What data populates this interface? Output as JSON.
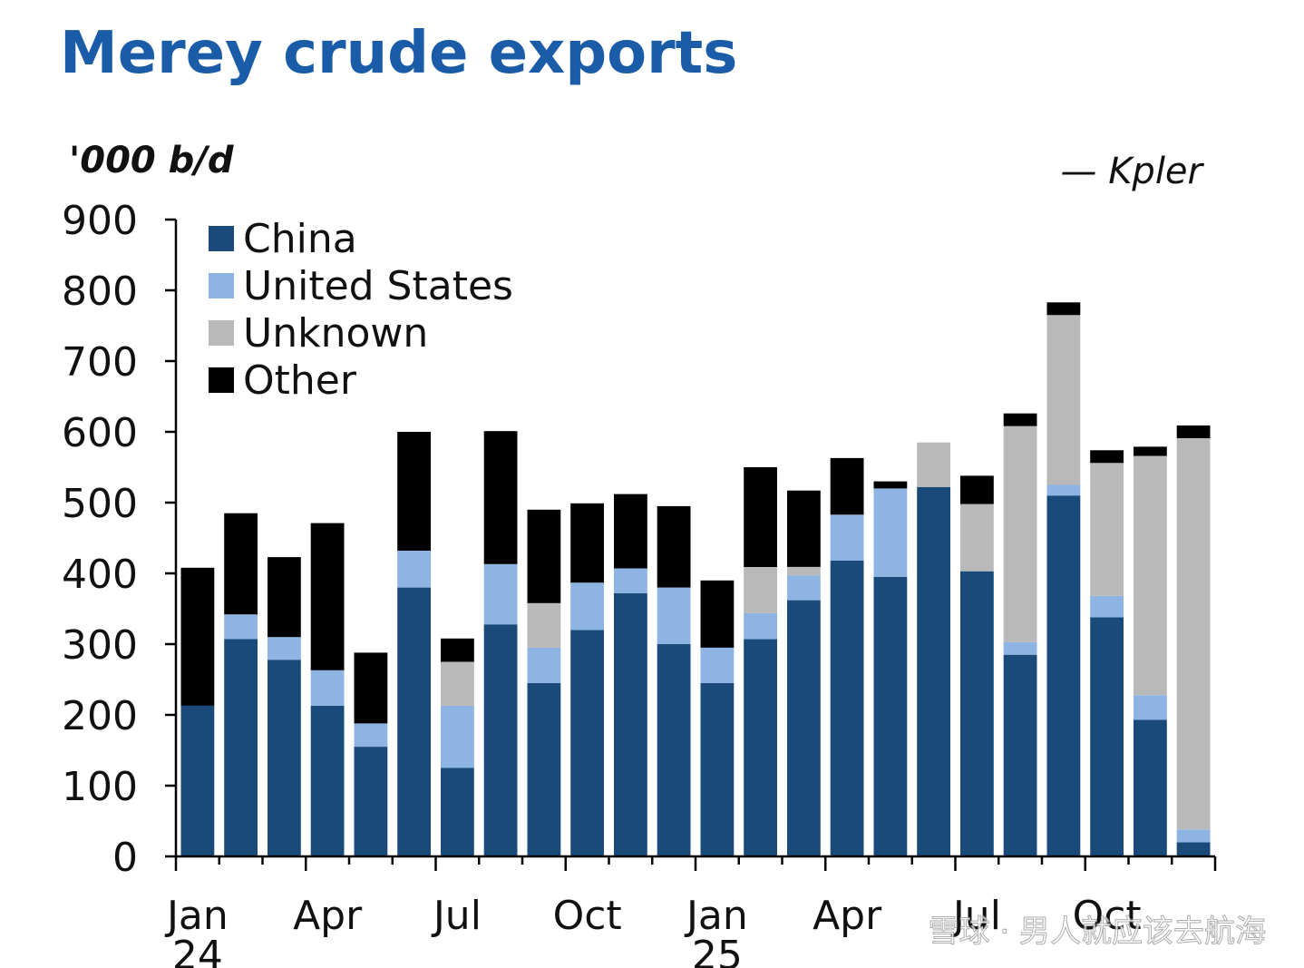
{
  "chart_data": {
    "type": "bar",
    "stacked": true,
    "title": "Merey crude exports",
    "ylabel": "'000 b/d",
    "source": "— Kpler",
    "ylim": [
      0,
      900
    ],
    "yticks": [
      0,
      100,
      200,
      300,
      400,
      500,
      600,
      700,
      800,
      900
    ],
    "xtick_labels": [
      {
        "index": 0,
        "lines": [
          "Jan",
          "24"
        ]
      },
      {
        "index": 3,
        "lines": [
          "Apr"
        ]
      },
      {
        "index": 6,
        "lines": [
          "Jul"
        ]
      },
      {
        "index": 9,
        "lines": [
          "Oct"
        ]
      },
      {
        "index": 12,
        "lines": [
          "Jan",
          "25"
        ]
      },
      {
        "index": 15,
        "lines": [
          "Apr"
        ]
      },
      {
        "index": 18,
        "lines": [
          "Jul"
        ]
      },
      {
        "index": 21,
        "lines": [
          "Oct"
        ]
      }
    ],
    "legend_position": "top-left",
    "series": [
      {
        "name": "China",
        "color": "#1a4a7a",
        "values": [
          213,
          307,
          278,
          213,
          155,
          380,
          125,
          328,
          245,
          320,
          372,
          300,
          245,
          307,
          362,
          418,
          395,
          522,
          403,
          285,
          510,
          338,
          193,
          20
        ]
      },
      {
        "name": "United States",
        "color": "#8db4e2",
        "values": [
          0,
          35,
          32,
          50,
          33,
          52,
          88,
          85,
          50,
          67,
          35,
          80,
          50,
          37,
          35,
          65,
          125,
          0,
          0,
          18,
          15,
          30,
          35,
          18
        ]
      },
      {
        "name": "Unknown",
        "color": "#b9b9b9",
        "values": [
          0,
          0,
          0,
          0,
          0,
          0,
          62,
          0,
          63,
          0,
          0,
          0,
          0,
          65,
          12,
          0,
          0,
          63,
          95,
          305,
          240,
          188,
          338,
          553
        ]
      },
      {
        "name": "Other",
        "color": "#000000",
        "values": [
          195,
          143,
          113,
          208,
          100,
          168,
          33,
          188,
          132,
          112,
          105,
          115,
          95,
          141,
          108,
          80,
          10,
          0,
          40,
          18,
          18,
          18,
          13,
          18
        ]
      }
    ]
  },
  "watermark": "雪球 · 男人就应该去航海"
}
